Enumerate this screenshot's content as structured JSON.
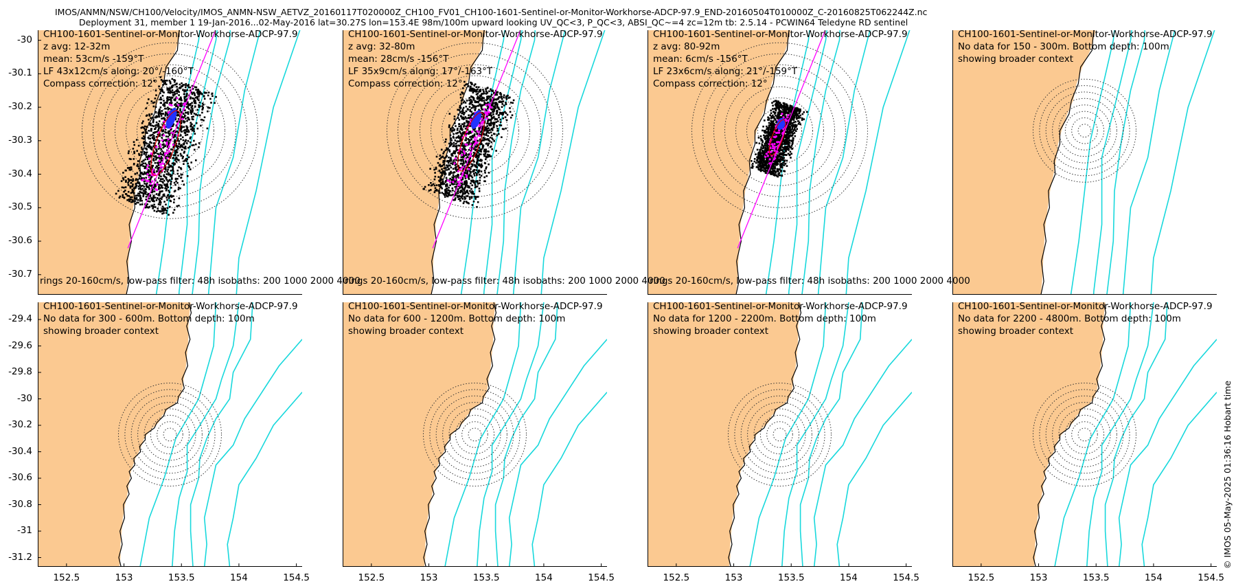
{
  "header": {
    "line1": "IMOS/ANMN/NSW/CH100/Velocity/IMOS_ANMN-NSW_AETVZ_20160117T020000Z_CH100_FV01_CH100-1601-Sentinel-or-Monitor-Workhorse-ADCP-97.9_END-20160504T010000Z_C-20160825T062244Z.nc",
    "line2": "Deployment 31, member 1 19-Jan-2016...02-May-2016 lat=30.27S lon=153.4E 98m/100m upward looking UV_QC<3, P_QC<3, ABSI_QC~=4 zc=12m tb: 2.5.14 - PCWIN64 Teledyne RD sentinel"
  },
  "credit": "© IMOS 05-May-2025 01:36:16 Hobart time",
  "colors": {
    "land": "#fbc991",
    "isobath": "#17d8dc",
    "scatter": "#000000",
    "lowpass": "#ff00ff",
    "mean": "#2233ff",
    "ellipse": "#e00000",
    "rings": "#333333"
  },
  "chart_data": [
    {
      "type": "scatter",
      "title": "CH100-1601-Sentinel-or-Monitor-Workhorse-ADCP-97.9",
      "lines": [
        "z avg: 12-32m",
        "mean: 53cm/s -159°T",
        "LF 43x12cm/s along: 20°/-160°T",
        "Compass correction: 12°"
      ],
      "footer": "rings 20-160cm/s, low-pass filter: 48h isobaths: 200 1000 2000 4000",
      "xlim": [
        152.25,
        154.55
      ],
      "ylim": [
        -30.76,
        -29.97
      ],
      "yticks": [
        "-30",
        "-30.1",
        "-30.2",
        "-30.3",
        "-30.4",
        "-30.5",
        "-30.6",
        "-30.7"
      ],
      "xticks": [],
      "center": [
        153.4,
        -30.27
      ],
      "rings_cm_s": [
        20,
        40,
        60,
        80,
        100,
        120,
        140,
        160
      ],
      "has_data": true
    },
    {
      "type": "scatter",
      "title": "CH100-1601-Sentinel-or-Monitor-Workhorse-ADCP-97.9",
      "lines": [
        "z avg: 32-80m",
        "mean: 28cm/s -156°T",
        "LF 35x9cm/s along: 17°/-163°T",
        "Compass correction: 12°"
      ],
      "footer": "rings 20-160cm/s, low-pass filter: 48h isobaths: 200 1000 2000 4000",
      "xlim": [
        152.25,
        154.55
      ],
      "ylim": [
        -30.76,
        -29.97
      ],
      "yticks": [],
      "xticks": [],
      "center": [
        153.4,
        -30.27
      ],
      "rings_cm_s": [
        20,
        40,
        60,
        80,
        100,
        120,
        140,
        160
      ],
      "has_data": true
    },
    {
      "type": "scatter",
      "title": "CH100-1601-Sentinel-or-Monitor-Workhorse-ADCP-97.9",
      "lines": [
        "z avg: 80-92m",
        "mean: 6cm/s -156°T",
        "LF 23x6cm/s along: 21°/-159°T",
        "Compass correction: 12°"
      ],
      "footer": "rings 20-160cm/s, low-pass filter: 48h isobaths: 200 1000 2000 4000",
      "xlim": [
        152.25,
        154.55
      ],
      "ylim": [
        -30.76,
        -29.97
      ],
      "yticks": [],
      "xticks": [],
      "center": [
        153.4,
        -30.27
      ],
      "rings_cm_s": [
        20,
        40,
        60,
        80,
        100,
        120,
        140,
        160
      ],
      "has_data": true
    },
    {
      "type": "scatter",
      "title": "CH100-1601-Sentinel-or-Monitor-Workhorse-ADCP-97.9",
      "lines": [
        "No data for 150 - 300m. Bottom depth: 100m",
        "showing broader context"
      ],
      "footer": "",
      "xlim": [
        152.25,
        154.55
      ],
      "ylim": [
        -30.76,
        -29.97
      ],
      "yticks": [],
      "xticks": [],
      "center": [
        153.4,
        -30.27
      ],
      "rings_cm_s": [
        20,
        40,
        60,
        80,
        100,
        120,
        140,
        160
      ],
      "has_data": false
    },
    {
      "type": "scatter",
      "title": "CH100-1601-Sentinel-or-Monitor-Workhorse-ADCP-97.9",
      "lines": [
        "No data for 300 - 600m. Bottom depth: 100m",
        "showing broader context"
      ],
      "footer": "",
      "xlim": [
        152.25,
        154.55
      ],
      "ylim": [
        -31.27,
        -29.27
      ],
      "yticks": [
        "-29.4",
        "-29.6",
        "-29.8",
        "-30",
        "-30.2",
        "-30.4",
        "-30.6",
        "-30.8",
        "-31",
        "-31.2"
      ],
      "xticks": [
        "152.5",
        "153",
        "153.5",
        "154",
        "154.5"
      ],
      "center": [
        153.4,
        -30.27
      ],
      "rings_cm_s": [
        20,
        40,
        60,
        80,
        100,
        120,
        140,
        160
      ],
      "has_data": false
    },
    {
      "type": "scatter",
      "title": "CH100-1601-Sentinel-or-Monitor-Workhorse-ADCP-97.9",
      "lines": [
        "No data for 600 - 1200m. Bottom depth: 100m",
        "showing broader context"
      ],
      "footer": "",
      "xlim": [
        152.25,
        154.55
      ],
      "ylim": [
        -31.27,
        -29.27
      ],
      "yticks": [],
      "xticks": [
        "152.5",
        "153",
        "153.5",
        "154",
        "154.5"
      ],
      "center": [
        153.4,
        -30.27
      ],
      "rings_cm_s": [
        20,
        40,
        60,
        80,
        100,
        120,
        140,
        160
      ],
      "has_data": false
    },
    {
      "type": "scatter",
      "title": "CH100-1601-Sentinel-or-Monitor-Workhorse-ADCP-97.9",
      "lines": [
        "No data for 1200 - 2200m. Bottom depth: 100m",
        "showing broader context"
      ],
      "footer": "",
      "xlim": [
        152.25,
        154.55
      ],
      "ylim": [
        -31.27,
        -29.27
      ],
      "yticks": [],
      "xticks": [
        "152.5",
        "153",
        "153.5",
        "154",
        "154.5"
      ],
      "center": [
        153.4,
        -30.27
      ],
      "rings_cm_s": [
        20,
        40,
        60,
        80,
        100,
        120,
        140,
        160
      ],
      "has_data": false
    },
    {
      "type": "scatter",
      "title": "CH100-1601-Sentinel-or-Monitor-Workhorse-ADCP-97.9",
      "lines": [
        "No data for 2200 - 4800m. Bottom depth: 100m",
        "showing broader context"
      ],
      "footer": "",
      "xlim": [
        152.25,
        154.55
      ],
      "ylim": [
        -31.27,
        -29.27
      ],
      "yticks": [],
      "xticks": [
        "152.5",
        "153",
        "153.5",
        "154",
        "154.5"
      ],
      "center": [
        153.4,
        -30.27
      ],
      "rings_cm_s": [
        20,
        40,
        60,
        80,
        100,
        120,
        140,
        160
      ],
      "has_data": false
    }
  ]
}
